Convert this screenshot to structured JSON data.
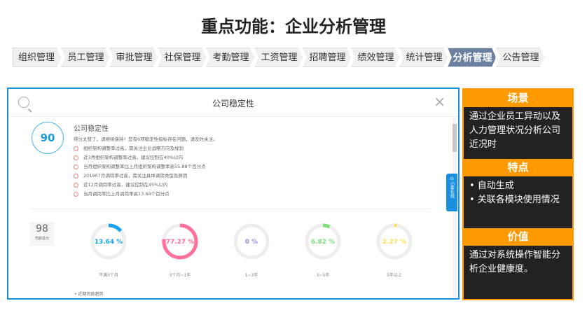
{
  "title": "重点功能：企业分析管理",
  "tabs": [
    {
      "label": "组织管理"
    },
    {
      "label": "员工管理"
    },
    {
      "label": "审批管理"
    },
    {
      "label": "社保管理"
    },
    {
      "label": "考勤管理"
    },
    {
      "label": "工资管理"
    },
    {
      "label": "招聘管理"
    },
    {
      "label": "绩效管理"
    },
    {
      "label": "统计管理"
    },
    {
      "label": "分析管理",
      "active": true
    },
    {
      "label": "公告管理"
    }
  ],
  "modal": {
    "title": "公司稳定性",
    "close": "×",
    "score": "90",
    "section_title": "公司稳定性",
    "summary": "得分太赞了，请继续保持！您有6项稳定性指标存在问题，请及时关注。",
    "issues": [
      "组织架构调整率过高，需关注企业战略方向及规划",
      "近3月组织架构调整率过高，建议控制在40%以内",
      "当月组织架构调整率比上月组织架构调整率高55.88个百分点",
      "201907月调岗率过高，需关注具体调岗类型及原因",
      "近12月调岗率过高，建议控制在45%以内",
      "当月调岗率比上月调岗率高13.64个百分点"
    ],
    "tenure_score": "98",
    "tenure_label": "司龄总分",
    "rings": [
      {
        "value": "13.64 %",
        "pct": 13.64,
        "label": "不满3个月",
        "color": "#1aa3f0"
      },
      {
        "value": "77.27 %",
        "pct": 77.27,
        "label": "3个月~1年",
        "color": "#ff6f9a"
      },
      {
        "value": "0 %",
        "pct": 0,
        "label": "1~3年",
        "color": "#a58be0"
      },
      {
        "value": "6.82 %",
        "pct": 6.82,
        "label": "3~5年",
        "color": "#7ee07e"
      },
      {
        "value": "2.27 %",
        "pct": 2.27,
        "label": "5年以上",
        "color": "#ffe050"
      }
    ],
    "bottom_text": "• 近期司龄趋势",
    "side_tab": "小薪在线"
  },
  "panel": [
    {
      "header": "场景",
      "body": "通过企业员工异动以及人力管理状况分析公司近况时"
    },
    {
      "header": "特点",
      "body": "• 自动生成\n• 关联各模块使用情况"
    },
    {
      "header": "价值",
      "body": "通过对系统操作智能分析企业健康度。"
    }
  ],
  "colors": {
    "accent": "#1a8fe0",
    "orange": "#ff9900",
    "active_tab": "#6b7f9e"
  }
}
